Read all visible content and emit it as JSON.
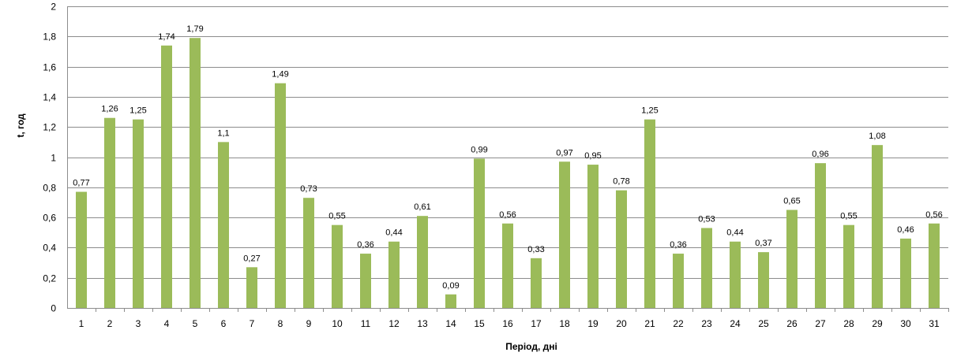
{
  "chart_data": {
    "type": "bar",
    "title": "",
    "xlabel": "Період, дні",
    "ylabel": "t, год",
    "categories": [
      "1",
      "2",
      "3",
      "4",
      "5",
      "6",
      "7",
      "8",
      "9",
      "10",
      "11",
      "12",
      "13",
      "14",
      "15",
      "16",
      "17",
      "18",
      "19",
      "20",
      "21",
      "22",
      "23",
      "24",
      "25",
      "26",
      "27",
      "28",
      "29",
      "30",
      "31"
    ],
    "series": [
      {
        "values": [
          0.77,
          1.26,
          1.25,
          1.74,
          1.79,
          1.1,
          0.27,
          1.49,
          0.73,
          0.55,
          0.36,
          0.44,
          0.61,
          0.09,
          0.99,
          0.56,
          0.33,
          0.97,
          0.95,
          0.78,
          1.25,
          0.36,
          0.53,
          0.44,
          0.37,
          0.65,
          0.96,
          0.55,
          1.08,
          0.46,
          0.56
        ],
        "labels": [
          "0,77",
          "1,26",
          "1,25",
          "1,74",
          "1,79",
          "1,1",
          "0,27",
          "1,49",
          "0,73",
          "0,55",
          "0,36",
          "0,44",
          "0,61",
          "0,09",
          "0,99",
          "0,56",
          "0,33",
          "0,97",
          "0,95",
          "0,78",
          "1,25",
          "0,36",
          "0,53",
          "0,44",
          "0,37",
          "0,65",
          "0,96",
          "0,55",
          "1,08",
          "0,46",
          "0,56"
        ],
        "color": "#9bbb59"
      }
    ],
    "ylim": [
      0,
      2
    ],
    "yticks": [
      0,
      0.2,
      0.4,
      0.6,
      0.8,
      1,
      1.2,
      1.4,
      1.6,
      1.8,
      2
    ],
    "ytick_labels": [
      "0",
      "0,2",
      "0,4",
      "0,6",
      "0,8",
      "1",
      "1,2",
      "1,4",
      "1,6",
      "1,8",
      "2"
    ],
    "grid": true,
    "legend": "none",
    "colors": {
      "bar": "#9bbb59",
      "grid": "#8c8c8c",
      "axis": "#8c8c8c",
      "text": "#000000"
    }
  }
}
